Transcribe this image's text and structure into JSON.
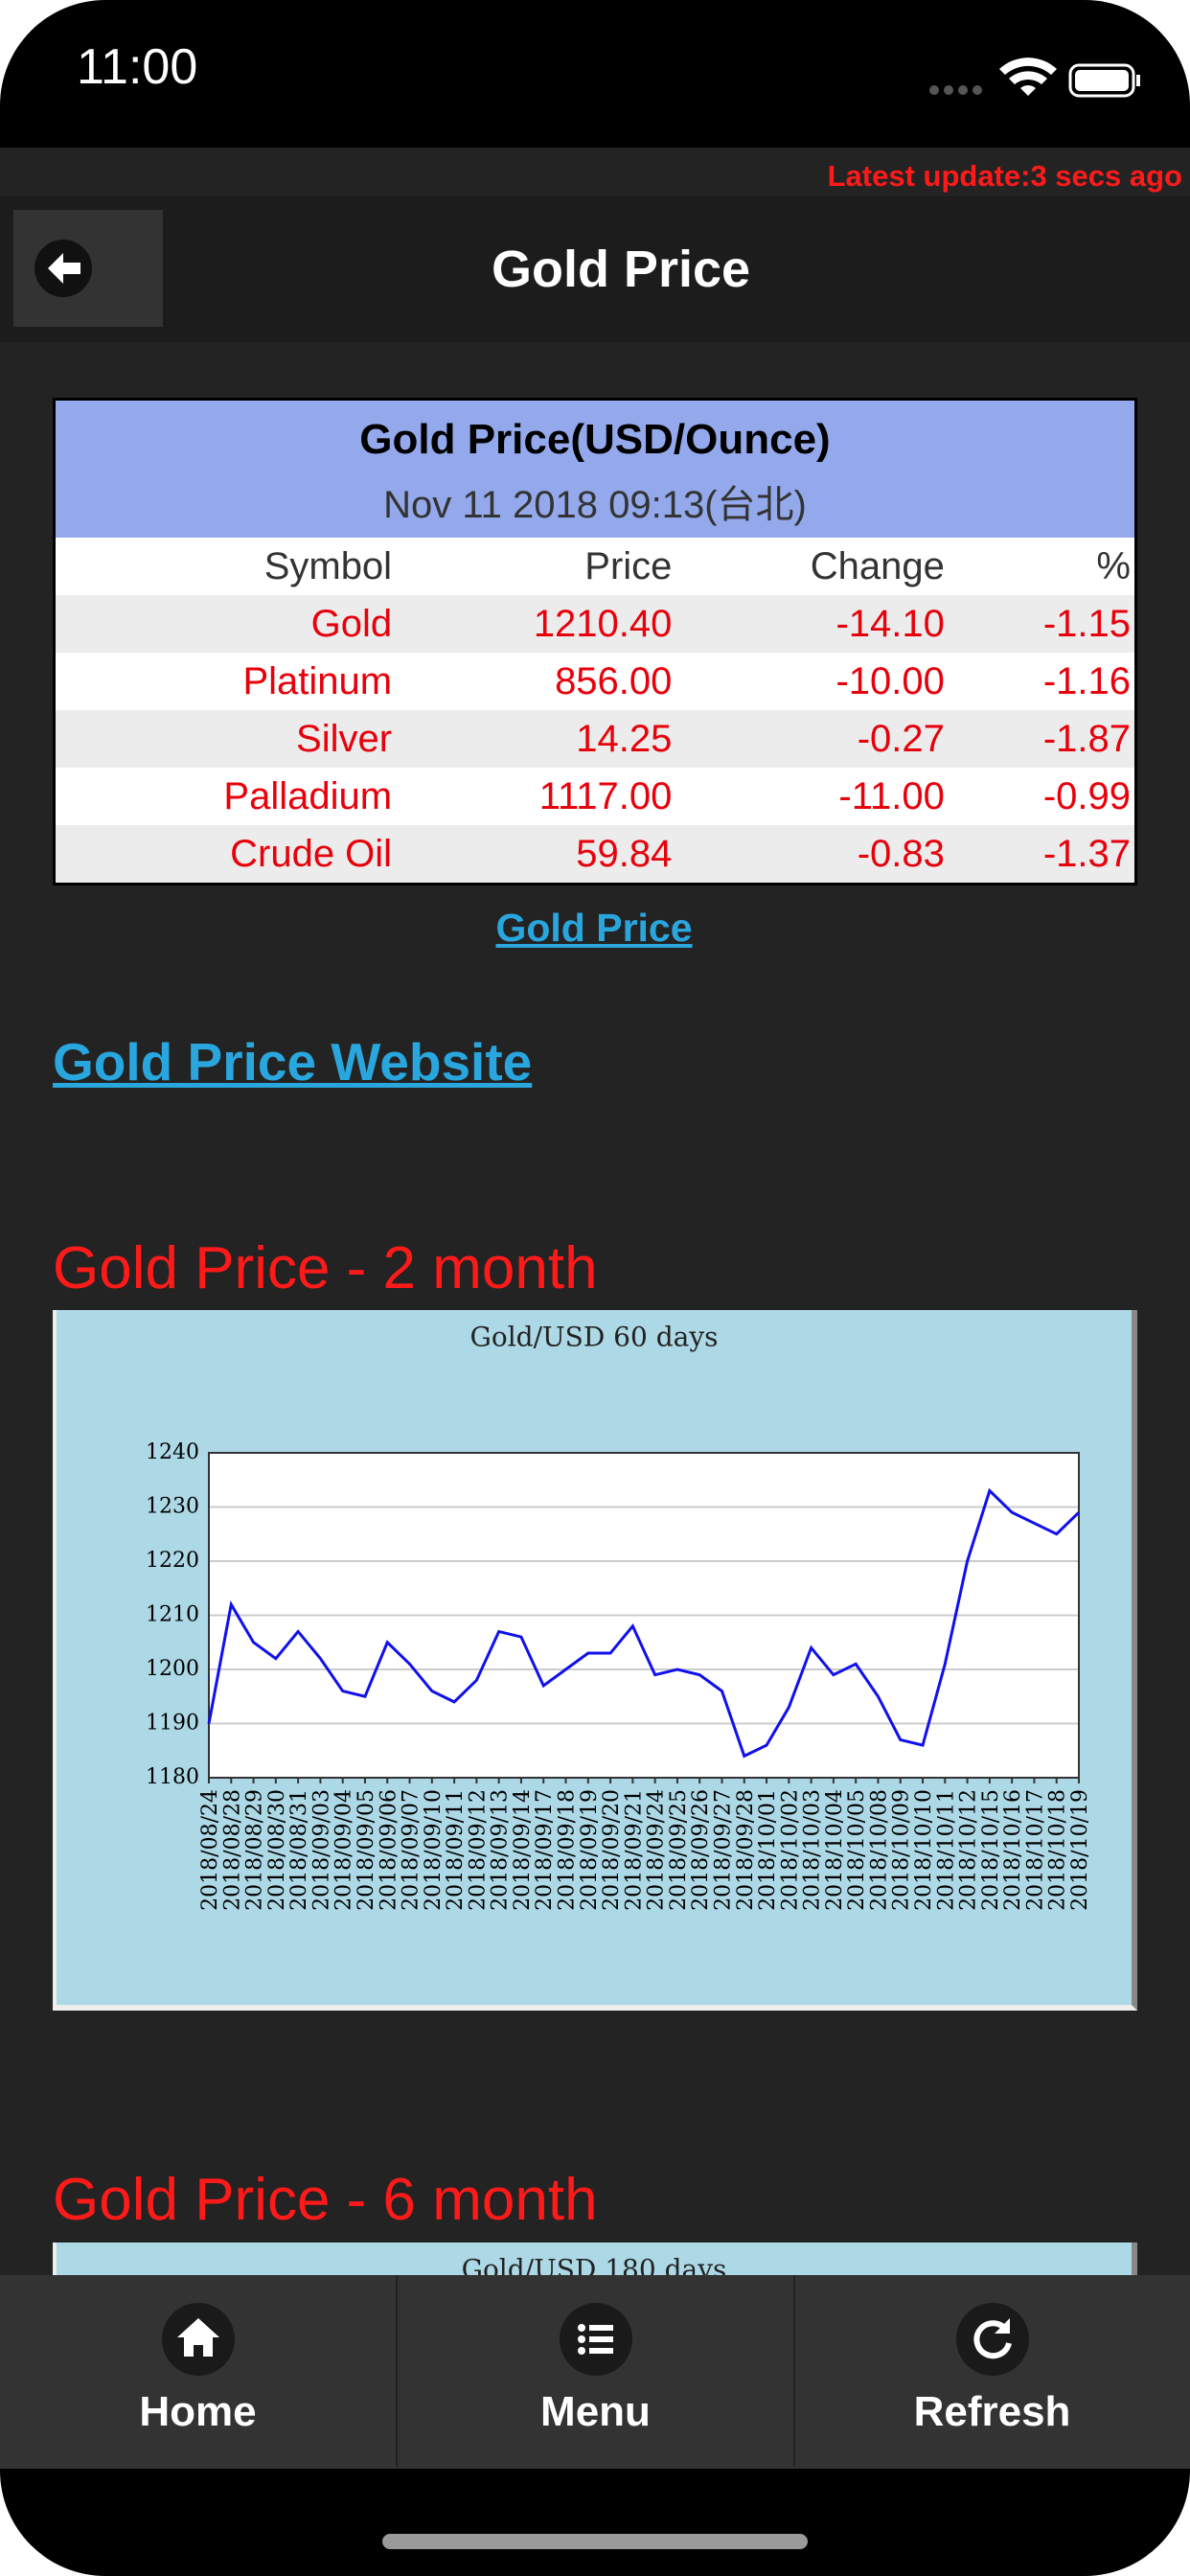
{
  "status_bar": {
    "time": "11:00"
  },
  "header": {
    "update": "Latest update:3 secs ago",
    "title": "Gold Price"
  },
  "table": {
    "title": "Gold Price(USD/Ounce)",
    "date": "Nov 11 2018 09:13(台北)",
    "columns": [
      "Symbol",
      "Price",
      "Change",
      "%"
    ],
    "rows": [
      [
        "Gold",
        "1210.40",
        "-14.10",
        "-1.15"
      ],
      [
        "Platinum",
        "856.00",
        "-10.00",
        "-1.16"
      ],
      [
        "Silver",
        "14.25",
        "-0.27",
        "-1.87"
      ],
      [
        "Palladium",
        "1117.00",
        "-11.00",
        "-0.99"
      ],
      [
        "Crude Oil",
        "59.84",
        "-0.83",
        "-1.37"
      ]
    ]
  },
  "links": {
    "table_link": "Gold Price",
    "website": "Gold Price Website"
  },
  "headings": [
    "Gold Price - 2 month",
    "Gold Price - 6 month"
  ],
  "chart_data": [
    {
      "type": "line",
      "title": "Gold/USD  60 days",
      "categories": [
        "2018/08/24",
        "2018/08/28",
        "2018/08/29",
        "2018/08/30",
        "2018/08/31",
        "2018/09/03",
        "2018/09/04",
        "2018/09/05",
        "2018/09/06",
        "2018/09/07",
        "2018/09/10",
        "2018/09/11",
        "2018/09/12",
        "2018/09/13",
        "2018/09/14",
        "2018/09/17",
        "2018/09/18",
        "2018/09/19",
        "2018/09/20",
        "2018/09/21",
        "2018/09/24",
        "2018/09/25",
        "2018/09/26",
        "2018/09/27",
        "2018/09/28",
        "2018/10/01",
        "2018/10/02",
        "2018/10/03",
        "2018/10/04",
        "2018/10/05",
        "2018/10/08",
        "2018/10/09",
        "2018/10/10",
        "2018/10/11",
        "2018/10/12",
        "2018/10/15",
        "2018/10/16",
        "2018/10/17",
        "2018/10/18",
        "2018/10/19"
      ],
      "series": [
        {
          "color": "#1010ee",
          "values": [
            1190,
            1212,
            1205,
            1202,
            1207,
            1202,
            1196,
            1195,
            1205,
            1201,
            1196,
            1194,
            1198,
            1207,
            1206,
            1197,
            1200,
            1203,
            1203,
            1208,
            1199,
            1200,
            1199,
            1196,
            1184,
            1186,
            1193,
            1204,
            1199,
            1201,
            1195,
            1187,
            1186,
            1201,
            1220,
            1233,
            1229,
            1227,
            1225,
            1229
          ]
        }
      ],
      "ylim": [
        1180,
        1240
      ],
      "yticks": [
        1180,
        1190,
        1200,
        1210,
        1220,
        1230,
        1240
      ],
      "grid": true
    },
    {
      "type": "line",
      "title": "Gold/USD  180 days"
    }
  ],
  "tabs": [
    "Home",
    "Menu",
    "Refresh"
  ]
}
